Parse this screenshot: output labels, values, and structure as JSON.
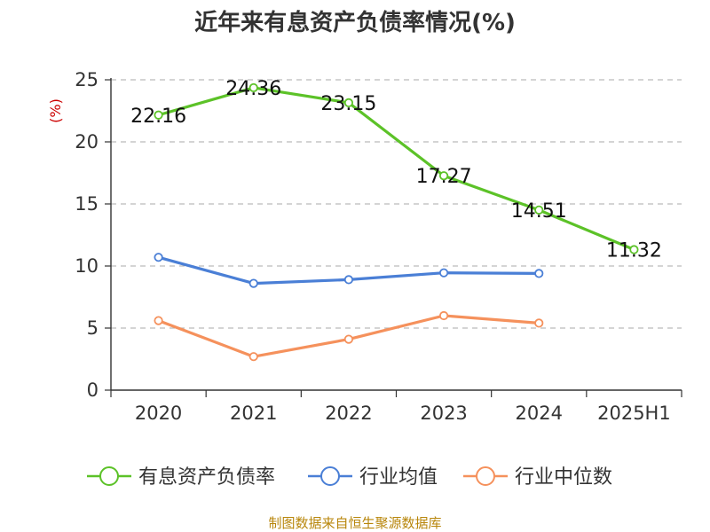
{
  "chart_data": {
    "type": "line",
    "title": "近年来有息资产负债率情况(%)",
    "ylabel": "(%)",
    "categories": [
      "2020",
      "2021",
      "2022",
      "2023",
      "2024",
      "2025H1"
    ],
    "y_ticks": [
      "0",
      "5",
      "10",
      "15",
      "20",
      "25"
    ],
    "ylim": [
      0,
      25
    ],
    "grid": true,
    "legend_position": "bottom",
    "series": [
      {
        "name": "有息资产负债率",
        "color": "#5cc228",
        "values": [
          22.16,
          24.36,
          23.15,
          17.27,
          14.51,
          11.32
        ],
        "labels": [
          "22.16",
          "24.36",
          "23.15",
          "17.27",
          "14.51",
          "11.32"
        ]
      },
      {
        "name": "行业均值",
        "color": "#4a7fd6",
        "values": [
          10.7,
          8.6,
          8.9,
          9.45,
          9.4,
          null
        ]
      },
      {
        "name": "行业中位数",
        "color": "#f5915c",
        "values": [
          5.6,
          2.7,
          4.1,
          6.0,
          5.4,
          null
        ]
      }
    ]
  },
  "source": "制图数据来自恒生聚源数据库"
}
